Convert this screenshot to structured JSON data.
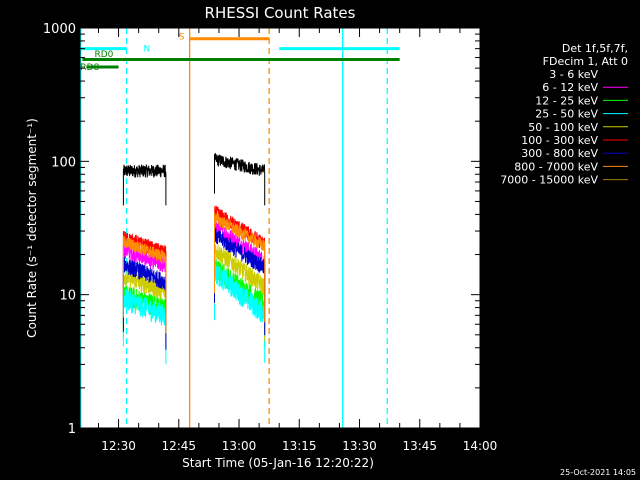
{
  "chart_data": {
    "type": "line",
    "title": "RHESSI Count Rates",
    "xlabel": "Start Time (05-Jan-16 12:20:22)",
    "ylabel": "Count Rate (s⁻¹ detector segment⁻¹)",
    "ylim": [
      1,
      1000
    ],
    "yscale": "log",
    "xlim_minutes_from_midnight": [
      740.4,
      840.0
    ],
    "x_ticks": [
      "12:30",
      "12:45",
      "13:00",
      "13:15",
      "13:30",
      "13:45",
      "14:00"
    ],
    "y_ticks": [
      "1",
      "10",
      "100",
      "1000"
    ],
    "footer_stamp": "25-Oct-2021 14:05",
    "legend": {
      "header": [
        "Det 1f,5f,7f,",
        "FDecim 1, Att 0"
      ],
      "placement": "right"
    },
    "series": [
      {
        "name": "3 - 6 keV",
        "color": "#000000",
        "segments": [
          {
            "start": 751.2,
            "end": 761.8,
            "v0": 85,
            "v1": 85,
            "ripple": 0.07
          },
          {
            "start": 773.9,
            "end": 786.4,
            "v0": 104,
            "v1": 85,
            "ripple": 0.07
          }
        ]
      },
      {
        "name": "6 - 12 keV",
        "color": "#ff00ff",
        "segments": [
          {
            "start": 751.2,
            "end": 761.8,
            "v0": 22,
            "v1": 16.5,
            "ripple": 0.09
          },
          {
            "start": 773.9,
            "end": 786.4,
            "v0": 33,
            "v1": 18,
            "ripple": 0.09
          }
        ]
      },
      {
        "name": "12 - 25 keV",
        "color": "#00ff00",
        "segments": [
          {
            "start": 751.2,
            "end": 761.8,
            "v0": 10,
            "v1": 8,
            "ripple": 0.12
          },
          {
            "start": 773.9,
            "end": 786.4,
            "v0": 16,
            "v1": 8.5,
            "ripple": 0.12
          }
        ]
      },
      {
        "name": "25 - 50 keV",
        "color": "#00ffff",
        "segments": [
          {
            "start": 751.2,
            "end": 761.8,
            "v0": 9.5,
            "v1": 7,
            "ripple": 0.12
          },
          {
            "start": 773.9,
            "end": 786.4,
            "v0": 15,
            "v1": 7.2,
            "ripple": 0.12
          }
        ]
      },
      {
        "name": "50 - 100 keV",
        "color": "#cccc00",
        "segments": [
          {
            "start": 751.2,
            "end": 761.8,
            "v0": 14,
            "v1": 10.5,
            "ripple": 0.1
          },
          {
            "start": 773.9,
            "end": 786.4,
            "v0": 22,
            "v1": 11.5,
            "ripple": 0.1
          }
        ]
      },
      {
        "name": "100 - 300 keV",
        "color": "#ff0000",
        "segments": [
          {
            "start": 751.2,
            "end": 761.8,
            "v0": 27,
            "v1": 20.5,
            "ripple": 0.08
          },
          {
            "start": 773.9,
            "end": 786.4,
            "v0": 42,
            "v1": 24,
            "ripple": 0.08
          }
        ]
      },
      {
        "name": "300 - 800 keV",
        "color": "#0000cc",
        "segments": [
          {
            "start": 751.2,
            "end": 761.8,
            "v0": 17,
            "v1": 12.5,
            "ripple": 0.09
          },
          {
            "start": 773.9,
            "end": 786.4,
            "v0": 28,
            "v1": 16,
            "ripple": 0.09
          }
        ]
      },
      {
        "name": "800 - 7000 keV",
        "color": "#ff8c00",
        "segments": [
          {
            "start": 751.2,
            "end": 761.8,
            "v0": 25,
            "v1": 19,
            "ripple": 0.07
          },
          {
            "start": 773.9,
            "end": 786.4,
            "v0": 38,
            "v1": 23,
            "ripple": 0.07
          }
        ]
      },
      {
        "name": "7000 - 15000 keV",
        "color": "#a08000",
        "segments": []
      }
    ],
    "flags": [
      {
        "label": "RD0",
        "color": "#008000",
        "label_at": 744,
        "label_v": 640,
        "segments": [
          {
            "start": 741.0,
            "end": 751.0,
            "v": 580
          },
          {
            "start": 751.0,
            "end": 820.0,
            "v": 580
          }
        ]
      },
      {
        "label": "RD8",
        "color": "#008000",
        "label_at": 740.5,
        "label_v": 510,
        "segments": [
          {
            "start": 742.0,
            "end": 750.0,
            "v": 510
          }
        ]
      },
      {
        "label": "N",
        "color": "#00ffff",
        "label_at": 756.2,
        "label_v": 700,
        "segments": [
          {
            "start": 740.4,
            "end": 752.0,
            "v": 700
          },
          {
            "start": 790.0,
            "end": 820.0,
            "v": 700
          }
        ]
      },
      {
        "label": "S",
        "color": "#ff8c00",
        "label_at": 765.0,
        "label_v": 860,
        "segments": [
          {
            "start": 767.7,
            "end": 787.5,
            "v": 830
          }
        ]
      }
    ],
    "vlines": [
      {
        "at": 740.6,
        "color": "#00ffff",
        "style": "solid"
      },
      {
        "at": 752.0,
        "color": "#00ffff",
        "style": "dash"
      },
      {
        "at": 767.7,
        "color": "#ff8c00",
        "style": "solid"
      },
      {
        "at": 787.5,
        "color": "#ff8c00",
        "style": "dash"
      },
      {
        "at": 805.8,
        "color": "#00ffff",
        "style": "solid"
      },
      {
        "at": 816.9,
        "color": "#00ffff",
        "style": "dash"
      }
    ]
  }
}
